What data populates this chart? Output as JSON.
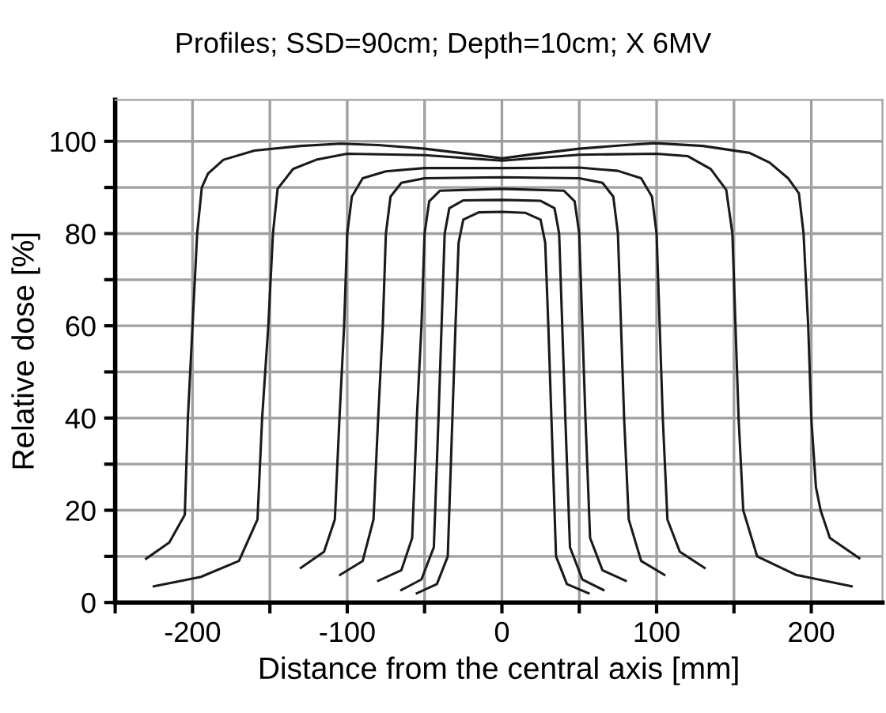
{
  "chart_data": {
    "type": "line",
    "title": "Profiles; SSD=90cm; Depth=10cm; X 6MV",
    "xlabel": "Distance from the central axis [mm]",
    "ylabel": "Relative dose [%]",
    "xlim": [
      -250,
      246
    ],
    "ylim": [
      0,
      109
    ],
    "xticks": [
      {
        "value": -250,
        "label": null
      },
      -200,
      {
        "value": -150,
        "label": null
      },
      -100,
      {
        "value": -50,
        "label": null
      },
      0,
      {
        "value": 50,
        "label": null
      },
      100,
      {
        "value": 150,
        "label": null
      },
      200
    ],
    "yticks": [
      0,
      {
        "value": 10,
        "label": null
      },
      20,
      {
        "value": 30,
        "label": null
      },
      40,
      {
        "value": 50,
        "label": null
      },
      60,
      {
        "value": 70,
        "label": null
      },
      80,
      {
        "value": 90,
        "label": null
      },
      100
    ],
    "grid": true,
    "marker": "none",
    "line_style": "solid",
    "series": [
      {
        "color": "#1a1a1a",
        "x": [
          -230,
          -215,
          -205,
          -203,
          -200,
          -197,
          -194,
          -190,
          -180,
          -160,
          -130,
          -104,
          -80,
          -50,
          -20,
          0,
          20,
          50,
          80,
          99,
          130,
          160,
          173,
          185,
          192,
          195,
          198,
          200,
          203,
          206,
          212,
          231
        ],
        "values": [
          9.5,
          13,
          19,
          40,
          60,
          80,
          90,
          93,
          96,
          98,
          99,
          99.5,
          99.2,
          98.4,
          97.2,
          96.3,
          97.2,
          98.4,
          99.2,
          99.6,
          99,
          97.5,
          95.4,
          92,
          88.7,
          80,
          60,
          40,
          25,
          20,
          14,
          9.6
        ]
      },
      {
        "color": "#1a1a1a",
        "x": [
          -225,
          -195,
          -170,
          -158,
          -155,
          -151,
          -148,
          -145,
          -135,
          -120,
          -100,
          -50,
          0,
          50,
          100,
          120,
          135,
          145,
          149,
          151,
          153,
          156,
          165,
          190,
          226
        ],
        "values": [
          3.5,
          5.5,
          9,
          18,
          40,
          60,
          80,
          89.7,
          94,
          96,
          97.3,
          97,
          95.8,
          97.1,
          97.3,
          96.8,
          94,
          89.5,
          80,
          60,
          40,
          20,
          10,
          6,
          3.5
        ]
      },
      {
        "color": "#1a1a1a",
        "x": [
          -130,
          -115,
          -108,
          -105,
          -102,
          -100,
          -97,
          -90,
          -75,
          -50,
          0,
          50,
          75,
          90,
          97,
          100,
          102,
          104,
          107,
          115,
          131
        ],
        "values": [
          7.5,
          11,
          18,
          40,
          60,
          80,
          88,
          92,
          93.5,
          94.2,
          94.2,
          94.3,
          93.6,
          92,
          88,
          80,
          60,
          40,
          18,
          11,
          7.5
        ]
      },
      {
        "color": "#1a1a1a",
        "x": [
          -104.6,
          -90,
          -83,
          -80,
          -77,
          -75,
          -72,
          -65,
          -50,
          0,
          50,
          65,
          72,
          75,
          77,
          79,
          82,
          90,
          105
        ],
        "values": [
          6,
          9,
          18,
          40,
          60,
          80,
          88,
          91,
          92,
          92.2,
          92,
          91,
          88,
          80,
          60,
          40,
          18,
          9,
          6
        ]
      },
      {
        "color": "#1a1a1a",
        "x": [
          -80,
          -65,
          -58,
          -55,
          -52,
          -50,
          -47,
          -40,
          0,
          40,
          47,
          50,
          52,
          54,
          57,
          65,
          80
        ],
        "values": [
          4.7,
          7,
          14,
          40,
          60,
          80,
          87,
          89.3,
          89.7,
          89.3,
          87,
          80,
          60,
          40,
          14,
          7,
          4.7
        ]
      },
      {
        "color": "#1a1a1a",
        "x": [
          -65,
          -52,
          -44,
          -41,
          -39,
          -37,
          -34,
          -25,
          0,
          25,
          34,
          37,
          39,
          41,
          44,
          52,
          65.6
        ],
        "values": [
          2.7,
          5,
          12,
          40,
          60,
          80,
          85.5,
          87.2,
          87.3,
          87.1,
          85.5,
          80,
          60,
          40,
          12,
          5,
          2.7
        ]
      },
      {
        "color": "#1a1a1a",
        "x": [
          -55,
          -42,
          -35,
          -32,
          -30,
          -28,
          -25,
          -15,
          0,
          15,
          25,
          28,
          30,
          32,
          35,
          42,
          56
        ],
        "values": [
          2,
          4,
          10,
          40,
          60,
          78,
          83,
          84.6,
          84.7,
          84.5,
          83,
          78,
          60,
          40,
          10,
          4,
          2
        ]
      }
    ]
  }
}
